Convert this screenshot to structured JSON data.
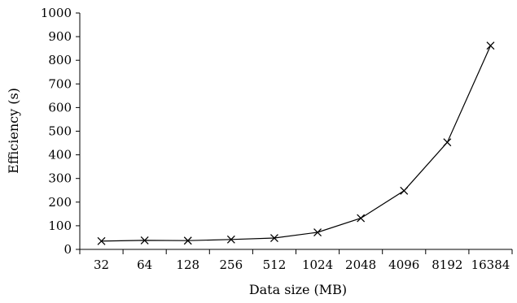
{
  "chart_data": {
    "type": "line",
    "title": "",
    "xlabel": "Data size (MB)",
    "ylabel": "Efficiency (s)",
    "categories": [
      "32",
      "64",
      "128",
      "256",
      "512",
      "1024",
      "2048",
      "4096",
      "8192",
      "16384"
    ],
    "series": [
      {
        "values": [
          35,
          38,
          37,
          42,
          48,
          72,
          132,
          248,
          453,
          862
        ],
        "marker": "x",
        "color": "#000000"
      }
    ],
    "ylim": [
      0,
      1000
    ],
    "yticks": [
      0,
      100,
      200,
      300,
      400,
      500,
      600,
      700,
      800,
      900,
      1000
    ],
    "grid": false,
    "legend": "none"
  }
}
